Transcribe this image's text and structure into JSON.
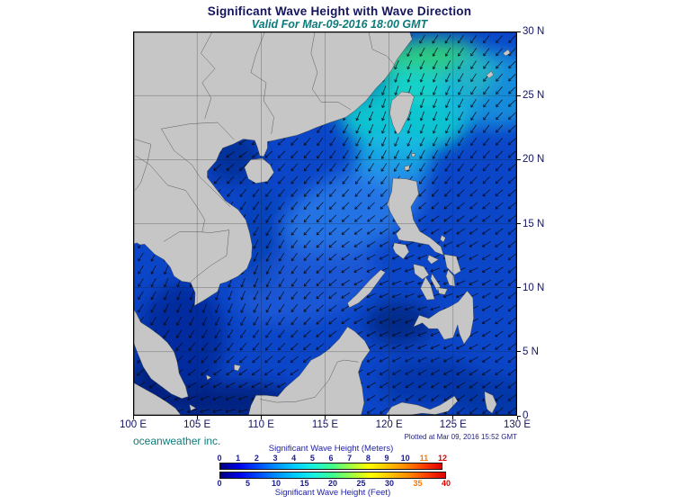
{
  "title": "Significant Wave Height with Wave Direction",
  "subtitle": "Valid For Mar-09-2016 18:00 GMT",
  "footer": {
    "credit": "oceanweather inc.",
    "plotted": "Plotted at Mar 09, 2016 15:52 GMT"
  },
  "axes": {
    "lat": [
      "30 N",
      "25 N",
      "20 N",
      "15 N",
      "10 N",
      "5 N",
      "0"
    ],
    "lon": [
      "100 E",
      "105 E",
      "110 E",
      "115 E",
      "120 E",
      "125 E",
      "130 E"
    ]
  },
  "colorbar": {
    "meters_title": "Significant Wave Height (Meters)",
    "feet_title": "Significant Wave Height (Feet)",
    "meters_ticks": [
      "0",
      "1",
      "2",
      "3",
      "4",
      "5",
      "6",
      "7",
      "8",
      "9",
      "10",
      "11",
      "12"
    ],
    "feet_ticks": [
      "0",
      "5",
      "10",
      "15",
      "20",
      "25",
      "30",
      "35",
      "40"
    ],
    "meters_tick_colors": [
      "#1c1c8a",
      "#1c1c8a",
      "#1c1c8a",
      "#1c1c8a",
      "#1c1c8a",
      "#1c1c8a",
      "#1c1c8a",
      "#1c1c8a",
      "#1c1c8a",
      "#1c1c8a",
      "#1c1c8a",
      "#ff7800",
      "#e00000"
    ],
    "feet_tick_colors": [
      "#1c1c8a",
      "#1c1c8a",
      "#1c1c8a",
      "#1c1c8a",
      "#1c1c8a",
      "#1c1c8a",
      "#1c1c8a",
      "#ff7800",
      "#e00000"
    ],
    "gradient_stops": [
      "#00007f",
      "#0000e8",
      "#0047ff",
      "#008fff",
      "#00ccff",
      "#17f2e1",
      "#3cff8f",
      "#9cff45",
      "#ffff00",
      "#ffc800",
      "#ff8c00",
      "#ff4000",
      "#dd0000"
    ]
  },
  "map": {
    "ocean_color": "#0b46c8",
    "land_color": "#c6c6c6",
    "grid_color": "#1a1a1a",
    "arrow_color": "#0a0a14",
    "wave_direction": "toward southwest"
  }
}
